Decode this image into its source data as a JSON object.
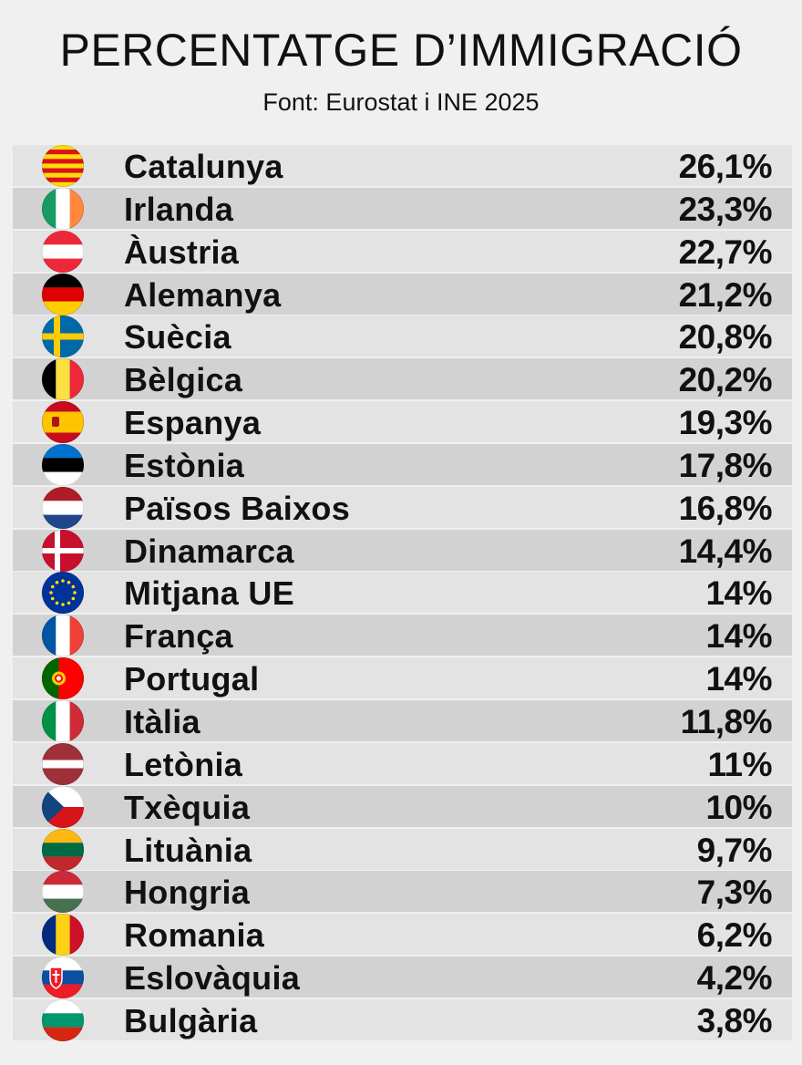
{
  "header": {
    "title": "PERCENTATGE D’IMMIGRACIÓ",
    "subtitle": "Font: Eurostat i INE 2025"
  },
  "chart_data": {
    "type": "table",
    "title": "PERCENTATGE D’IMMIGRACIÓ",
    "subtitle": "Font: Eurostat i INE 2025",
    "rows": [
      {
        "name": "Catalunya",
        "value": 26.1,
        "label": "26,1%",
        "flag": "catalonia-flag-icon"
      },
      {
        "name": "Irlanda",
        "value": 23.3,
        "label": "23,3%",
        "flag": "ireland-flag-icon"
      },
      {
        "name": "Àustria",
        "value": 22.7,
        "label": "22,7%",
        "flag": "austria-flag-icon"
      },
      {
        "name": "Alemanya",
        "value": 21.2,
        "label": "21,2%",
        "flag": "germany-flag-icon"
      },
      {
        "name": "Suècia",
        "value": 20.8,
        "label": "20,8%",
        "flag": "sweden-flag-icon"
      },
      {
        "name": "Bèlgica",
        "value": 20.2,
        "label": "20,2%",
        "flag": "belgium-flag-icon"
      },
      {
        "name": "Espanya",
        "value": 19.3,
        "label": "19,3%",
        "flag": "spain-flag-icon"
      },
      {
        "name": "Estònia",
        "value": 17.8,
        "label": "17,8%",
        "flag": "estonia-flag-icon"
      },
      {
        "name": "Països Baixos",
        "value": 16.8,
        "label": "16,8%",
        "flag": "netherlands-flag-icon"
      },
      {
        "name": "Dinamarca",
        "value": 14.4,
        "label": "14,4%",
        "flag": "denmark-flag-icon"
      },
      {
        "name": "Mitjana UE",
        "value": 14,
        "label": "14%",
        "flag": "eu-flag-icon"
      },
      {
        "name": "França",
        "value": 14,
        "label": "14%",
        "flag": "france-flag-icon"
      },
      {
        "name": "Portugal",
        "value": 14,
        "label": "14%",
        "flag": "portugal-flag-icon"
      },
      {
        "name": "Itàlia",
        "value": 11.8,
        "label": "11,8%",
        "flag": "italy-flag-icon"
      },
      {
        "name": "Letònia",
        "value": 11,
        "label": "11%",
        "flag": "latvia-flag-icon"
      },
      {
        "name": "Txèquia",
        "value": 10,
        "label": "10%",
        "flag": "czechia-flag-icon"
      },
      {
        "name": "Lituània",
        "value": 9.7,
        "label": "9,7%",
        "flag": "lithuania-flag-icon"
      },
      {
        "name": "Hongria",
        "value": 7.3,
        "label": "7,3%",
        "flag": "hungary-flag-icon"
      },
      {
        "name": "Romania",
        "value": 6.2,
        "label": "6,2%",
        "flag": "romania-flag-icon"
      },
      {
        "name": "Eslovàquia",
        "value": 4.2,
        "label": "4,2%",
        "flag": "slovakia-flag-icon"
      },
      {
        "name": "Bulgària",
        "value": 3.8,
        "label": "3,8%",
        "flag": "bulgaria-flag-icon"
      }
    ]
  },
  "colors": {
    "background": "#f0f0f0",
    "row_light": "#e3e3e3",
    "row_dark": "#d2d2d2",
    "text": "#111111"
  }
}
